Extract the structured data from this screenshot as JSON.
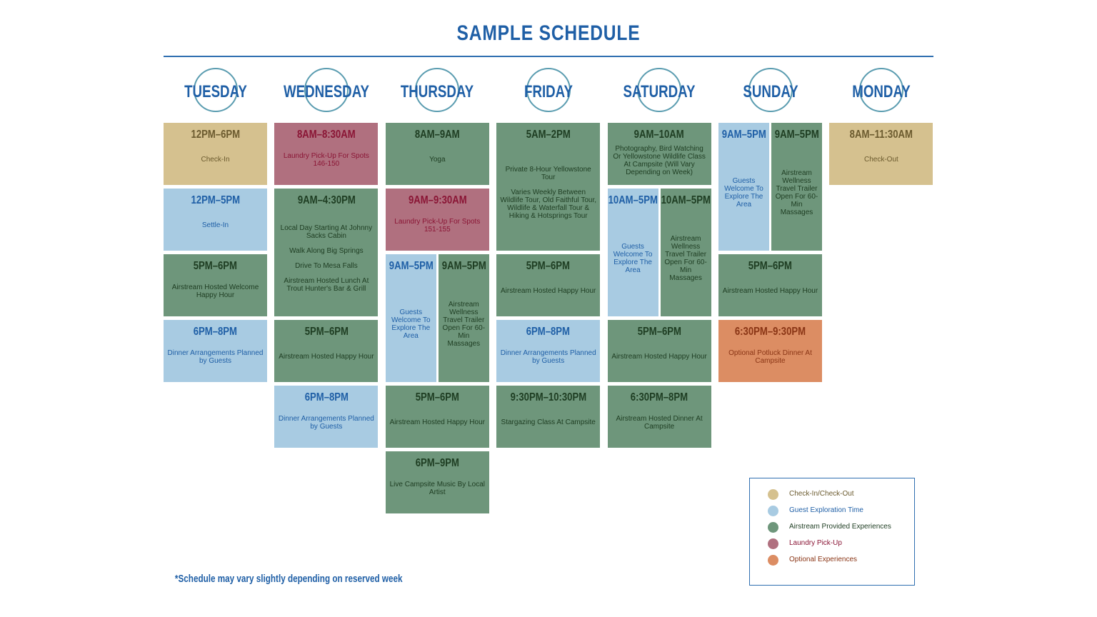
{
  "title": "SAMPLE SCHEDULE",
  "days": [
    {
      "name": "TUESDAY",
      "blocks": [
        {
          "time": "12PM–6PM",
          "text": [
            "Check-In"
          ],
          "color": "#d5c18f"
        },
        {
          "time": "12PM–5PM",
          "text": [
            "Settle-In"
          ],
          "color": "#a8cbe2"
        },
        {
          "time": "5PM–6PM",
          "text": [
            "Airstream Hosted Welcome Happy Hour"
          ],
          "color": "#6e967b"
        },
        {
          "time": "6PM–8PM",
          "text": [
            "Dinner Arrangements Planned by Guests"
          ],
          "color": "#a8cbe2"
        }
      ]
    },
    {
      "name": "WEDNESDAY",
      "blocks": [
        {
          "time": "8AM–8:30AM",
          "text": [
            "Laundry Pick-Up For Spots 146-150"
          ],
          "color": "#b0707f"
        },
        {
          "time": "9AM–4:30PM",
          "text": [
            "Local Day Starting At Johnny Sacks Cabin",
            "Walk Along Big Springs",
            "Drive To Mesa Falls",
            "Airstream Hosted Lunch At Trout Hunter's Bar & Grill"
          ],
          "color": "#6e967b"
        },
        {
          "time": "5PM–6PM",
          "text": [
            "Airstream Hosted Happy Hour"
          ],
          "color": "#6e967b"
        },
        {
          "time": "6PM–8PM",
          "text": [
            "Dinner Arrangements Planned by Guests"
          ],
          "color": "#a8cbe2"
        }
      ]
    },
    {
      "name": "THURSDAY",
      "blocks": [
        {
          "time": "8AM–9AM",
          "text": [
            "Yoga"
          ],
          "color": "#6e967b"
        },
        {
          "time": "9AM–9:30AM",
          "text": [
            "Laundry Pick-Up For Spots 151-155"
          ],
          "color": "#b0707f"
        },
        {
          "time": "9AM–5PM",
          "text": [
            "Guests Welcome To Explore The Area"
          ],
          "color": "#a8cbe2"
        },
        {
          "time": "9AM–5PM",
          "text": [
            "Airstream Wellness Travel Trailer Open For 60-Min Massages"
          ],
          "color": "#6e967b"
        },
        {
          "time": "5PM–6PM",
          "text": [
            "Airstream Hosted Happy Hour"
          ],
          "color": "#6e967b"
        },
        {
          "time": "6PM–9PM",
          "text": [
            "Live Campsite Music By Local Artist"
          ],
          "color": "#6e967b"
        }
      ]
    },
    {
      "name": "FRIDAY",
      "blocks": [
        {
          "time": "5AM–2PM",
          "text": [
            "Private 8-Hour Yellowstone Tour",
            "Varies Weekly Between Wildlife Tour, Old Faithful Tour, Wildlife & Waterfall Tour & Hiking & Hotsprings Tour"
          ],
          "color": "#6e967b"
        },
        {
          "time": "5PM–6PM",
          "text": [
            "Airstream Hosted Happy Hour"
          ],
          "color": "#6e967b"
        },
        {
          "time": "6PM–8PM",
          "text": [
            "Dinner Arrangements Planned by Guests"
          ],
          "color": "#a8cbe2"
        },
        {
          "time": "9:30PM–10:30PM",
          "text": [
            "Stargazing Class At Campsite"
          ],
          "color": "#6e967b"
        }
      ]
    },
    {
      "name": "SATURDAY",
      "blocks": [
        {
          "time": "9AM–10AM",
          "text": [
            "Photography, Bird Watching Or Yellowstone Wildlife Class At Campsite (Will Vary Depending on Week)"
          ],
          "color": "#6e967b"
        },
        {
          "time": "10AM–5PM",
          "text": [
            "Guests Welcome To Explore The Area"
          ],
          "color": "#a8cbe2"
        },
        {
          "time": "10AM–5PM",
          "text": [
            "Airstream Wellness Travel Trailer Open For 60-Min Massages"
          ],
          "color": "#6e967b"
        },
        {
          "time": "5PM–6PM",
          "text": [
            "Airstream Hosted Happy Hour"
          ],
          "color": "#6e967b"
        },
        {
          "time": "6:30PM–8PM",
          "text": [
            "Airstream Hosted Dinner At Campsite"
          ],
          "color": "#6e967b"
        }
      ]
    },
    {
      "name": "SUNDAY",
      "blocks": [
        {
          "time": "9AM–5PM",
          "text": [
            "Guests Welcome To Explore The Area"
          ],
          "color": "#a8cbe2"
        },
        {
          "time": "9AM–5PM",
          "text": [
            "Airstream Wellness Travel Trailer Open For 60-Min Massages"
          ],
          "color": "#6e967b"
        },
        {
          "time": "5PM–6PM",
          "text": [
            "Airstream Hosted Happy Hour"
          ],
          "color": "#6e967b"
        },
        {
          "time": "6:30PM–9:30PM",
          "text": [
            "Optional Potluck Dinner At Campsite"
          ],
          "color": "#dc8d63"
        }
      ]
    },
    {
      "name": "MONDAY",
      "blocks": [
        {
          "time": "8AM–11:30AM",
          "text": [
            "Check-Out"
          ],
          "color": "#d5c18f"
        }
      ]
    }
  ],
  "legend": [
    {
      "label": "Check-In/Check-Out",
      "color": "#d5c18f",
      "ink": "#6b5a2e"
    },
    {
      "label": "Guest Exploration Time",
      "color": "#a8cbe2",
      "ink": "#1f5fa6"
    },
    {
      "label": "Airstream Provided Experiences",
      "color": "#6e967b",
      "ink": "#1e3d22"
    },
    {
      "label": "Laundry Pick-Up",
      "color": "#b0707f",
      "ink": "#8a1535"
    },
    {
      "label": "Optional Experiences",
      "color": "#dc8d63",
      "ink": "#8a3515"
    }
  ],
  "footnote": "*Schedule may vary slightly depending on reserved week"
}
